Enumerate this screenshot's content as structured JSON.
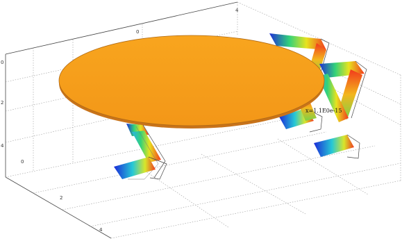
{
  "colors": {
    "plate_fill": "#f7a21b",
    "plate_edge": "#c8731a",
    "field_low": "#1f2fd6",
    "field_mid": "#32d27a",
    "field_high": "#f23a1c",
    "background": "#ffffff"
  },
  "axes": {
    "top_ticks": [
      "0",
      "4"
    ],
    "left_ticks": [
      "0",
      "2",
      "4"
    ],
    "front_ticks": [
      "0",
      "2",
      "4"
    ]
  },
  "annotation": {
    "label": "x=1.1E0e-15"
  }
}
